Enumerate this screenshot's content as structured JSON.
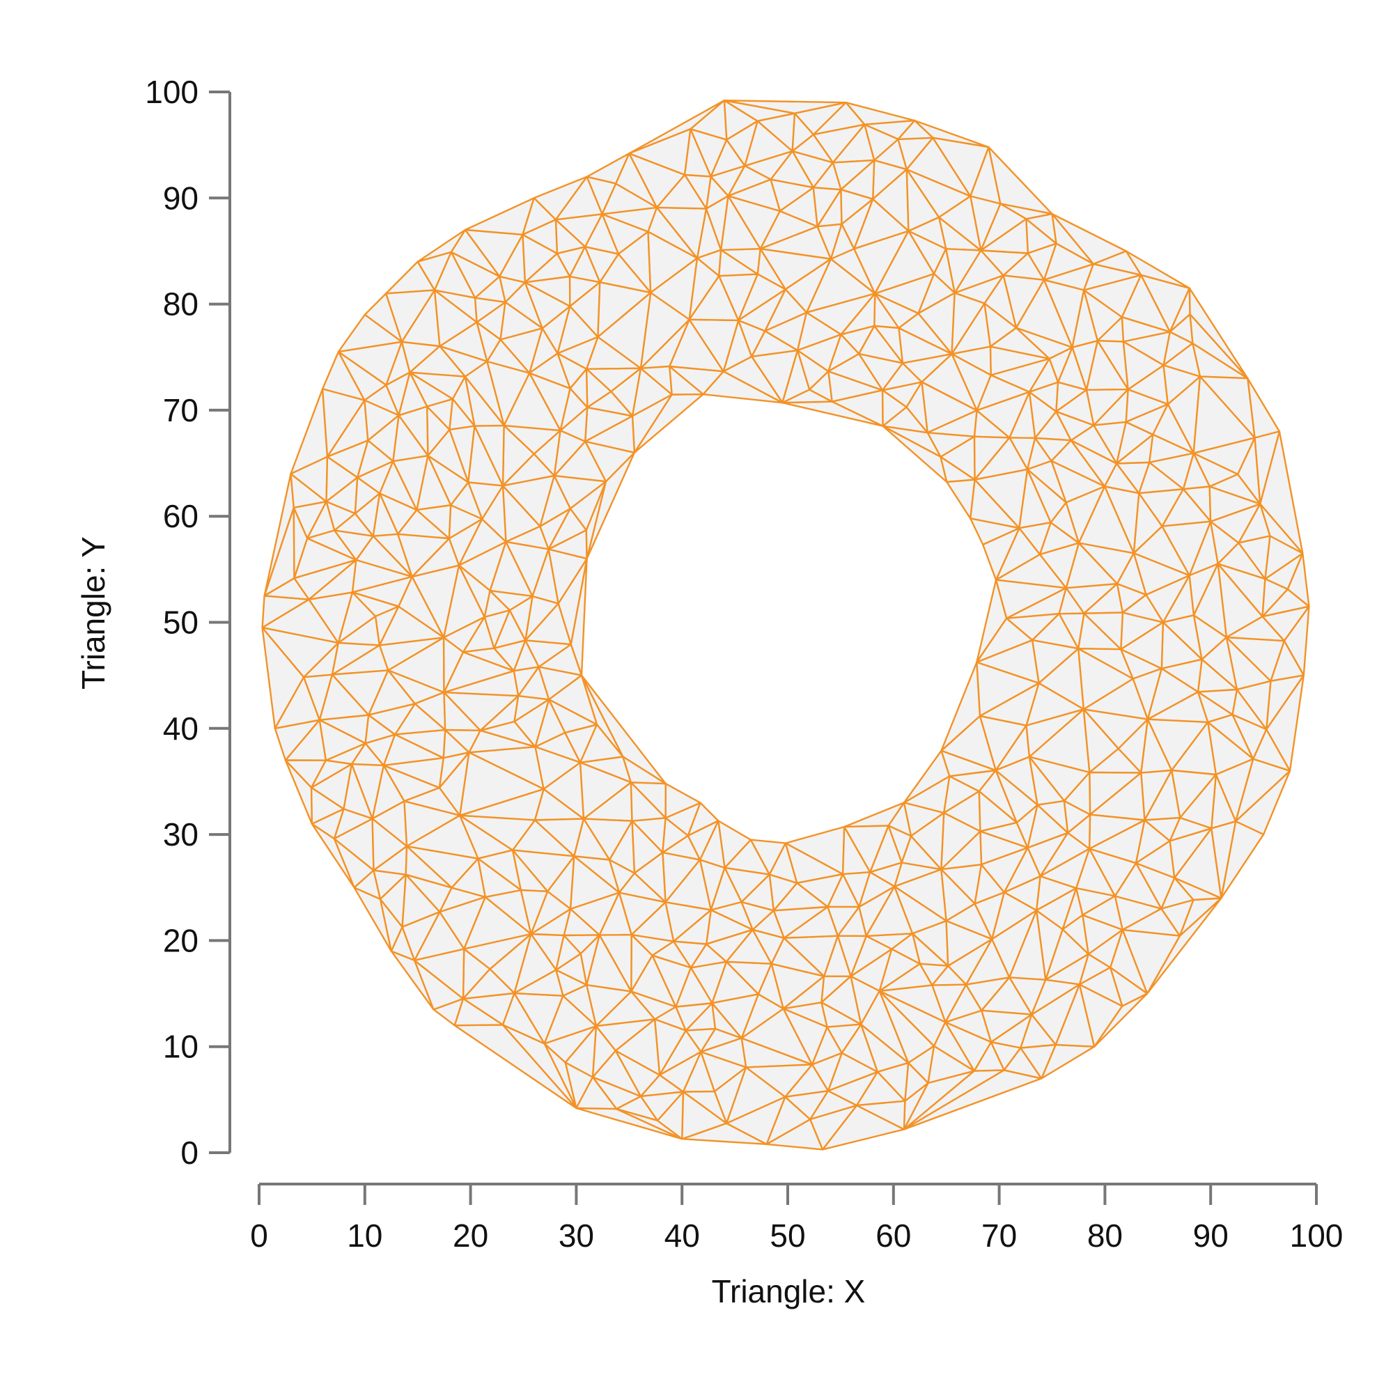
{
  "chart_data": {
    "type": "triangulation",
    "title": "",
    "xlabel": "Triangle: X",
    "ylabel": "Triangle: Y",
    "xlim": [
      0,
      100
    ],
    "ylim": [
      0,
      100
    ],
    "xticks": [
      "0",
      "10",
      "20",
      "30",
      "40",
      "50",
      "60",
      "70",
      "80",
      "90",
      "100"
    ],
    "yticks": [
      "0",
      "10",
      "20",
      "30",
      "40",
      "50",
      "60",
      "70",
      "80",
      "90",
      "100"
    ],
    "grid": false,
    "colors": {
      "edge": "#f39226",
      "fill": "#f2f2f2",
      "axis": "#777777"
    },
    "outer_boundary": [
      [
        53.3,
        0.3
      ],
      [
        61.0,
        2.2
      ],
      [
        74.0,
        7.0
      ],
      [
        79.0,
        10.0
      ],
      [
        84.0,
        15.0
      ],
      [
        91.0,
        24.0
      ],
      [
        95.0,
        30.0
      ],
      [
        97.5,
        36.0
      ],
      [
        98.8,
        45.0
      ],
      [
        99.3,
        51.5
      ],
      [
        98.7,
        56.5
      ],
      [
        96.5,
        68.0
      ],
      [
        93.5,
        73.0
      ],
      [
        88.0,
        81.5
      ],
      [
        82.0,
        85.0
      ],
      [
        75.0,
        88.5
      ],
      [
        69.0,
        94.8
      ],
      [
        62.0,
        97.3
      ],
      [
        55.5,
        99.0
      ],
      [
        44.0,
        99.2
      ],
      [
        35.0,
        94.2
      ],
      [
        31.0,
        92.0
      ],
      [
        26.0,
        90.0
      ],
      [
        19.5,
        87.0
      ],
      [
        15.0,
        84.0
      ],
      [
        12.0,
        81.0
      ],
      [
        10.0,
        79.0
      ],
      [
        7.5,
        75.5
      ],
      [
        6.0,
        72.0
      ],
      [
        3.0,
        64.0
      ],
      [
        0.5,
        52.5
      ],
      [
        0.3,
        49.5
      ],
      [
        1.5,
        40.0
      ],
      [
        2.5,
        37.0
      ],
      [
        5.0,
        31.0
      ],
      [
        9.0,
        25.0
      ],
      [
        12.5,
        19.0
      ],
      [
        16.5,
        13.5
      ],
      [
        18.5,
        12.0
      ],
      [
        30.0,
        4.2
      ],
      [
        40.0,
        1.3
      ],
      [
        48.0,
        0.8
      ]
    ],
    "inner_hole": [
      [
        49.5,
        70.7
      ],
      [
        59.0,
        68.5
      ],
      [
        69.7,
        54.0
      ],
      [
        61.0,
        33.0
      ],
      [
        46.5,
        29.5
      ],
      [
        30.5,
        45.0
      ],
      [
        31.0,
        56.0
      ],
      [
        35.5,
        66.0
      ],
      [
        42.0,
        71.5
      ]
    ],
    "annulus_point_count": 460,
    "random_seed": 7
  }
}
